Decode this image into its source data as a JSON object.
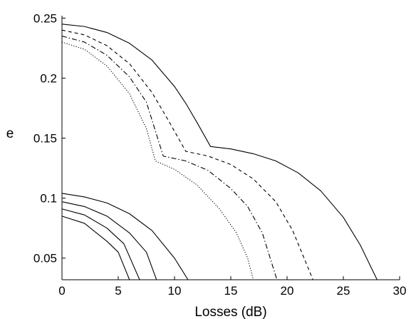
{
  "chart_data": {
    "type": "line",
    "title": "",
    "xlabel": "Losses (dB)",
    "ylabel": "e",
    "xlim": [
      0,
      30
    ],
    "ylim": [
      0.032,
      0.252
    ],
    "xticks": [
      0,
      5,
      10,
      15,
      20,
      25,
      30
    ],
    "xtick_labels": [
      "0",
      "5",
      "10",
      "15",
      "20",
      "25",
      "30"
    ],
    "yticks": [
      0.05,
      0.1,
      0.15,
      0.2,
      0.25
    ],
    "ytick_labels": [
      "0.05",
      "0.1",
      "0.15",
      "0.2",
      "0.25"
    ],
    "grid": false,
    "legend": "none",
    "series": [
      {
        "style": "solid",
        "color": "#000000",
        "x": [
          0,
          2,
          4,
          6,
          8,
          10,
          11,
          12,
          13.2,
          15,
          17,
          19,
          21,
          23,
          25,
          26.5,
          28
        ],
        "y": [
          0.245,
          0.243,
          0.238,
          0.229,
          0.215,
          0.193,
          0.179,
          0.163,
          0.143,
          0.141,
          0.137,
          0.131,
          0.121,
          0.106,
          0.084,
          0.061,
          0.032
        ]
      },
      {
        "style": "dashed",
        "color": "#000000",
        "x": [
          0,
          2,
          4,
          6,
          8,
          9.5,
          11,
          13,
          15,
          17,
          19,
          20.5,
          22.3
        ],
        "y": [
          0.24,
          0.236,
          0.227,
          0.212,
          0.188,
          0.164,
          0.139,
          0.135,
          0.128,
          0.116,
          0.097,
          0.073,
          0.032
        ]
      },
      {
        "style": "dashdot",
        "color": "#000000",
        "x": [
          0,
          2,
          4,
          6,
          7.5,
          9,
          11,
          13,
          15,
          16.5,
          17.8,
          19.1
        ],
        "y": [
          0.235,
          0.23,
          0.219,
          0.201,
          0.18,
          0.135,
          0.131,
          0.123,
          0.108,
          0.093,
          0.071,
          0.032
        ]
      },
      {
        "style": "dotted",
        "color": "#000000",
        "x": [
          0,
          2,
          4,
          6,
          7.5,
          8.3,
          10,
          12,
          14,
          15.5,
          16.5,
          17
        ],
        "y": [
          0.23,
          0.224,
          0.21,
          0.187,
          0.158,
          0.131,
          0.124,
          0.111,
          0.091,
          0.071,
          0.05,
          0.032
        ]
      },
      {
        "style": "solid",
        "color": "#000000",
        "x": [
          0,
          2,
          4,
          6,
          8,
          10,
          11.2
        ],
        "y": [
          0.104,
          0.101,
          0.096,
          0.087,
          0.073,
          0.05,
          0.032
        ]
      },
      {
        "style": "solid",
        "color": "#000000",
        "x": [
          0,
          2,
          4,
          6,
          7.5,
          8.4
        ],
        "y": [
          0.097,
          0.093,
          0.085,
          0.071,
          0.055,
          0.032
        ]
      },
      {
        "style": "solid",
        "color": "#000000",
        "x": [
          0,
          2,
          4,
          5.5,
          6.9
        ],
        "y": [
          0.091,
          0.086,
          0.075,
          0.062,
          0.032
        ]
      },
      {
        "style": "solid",
        "color": "#000000",
        "x": [
          0,
          2,
          4,
          5,
          6.0
        ],
        "y": [
          0.085,
          0.079,
          0.064,
          0.055,
          0.032
        ]
      }
    ]
  }
}
